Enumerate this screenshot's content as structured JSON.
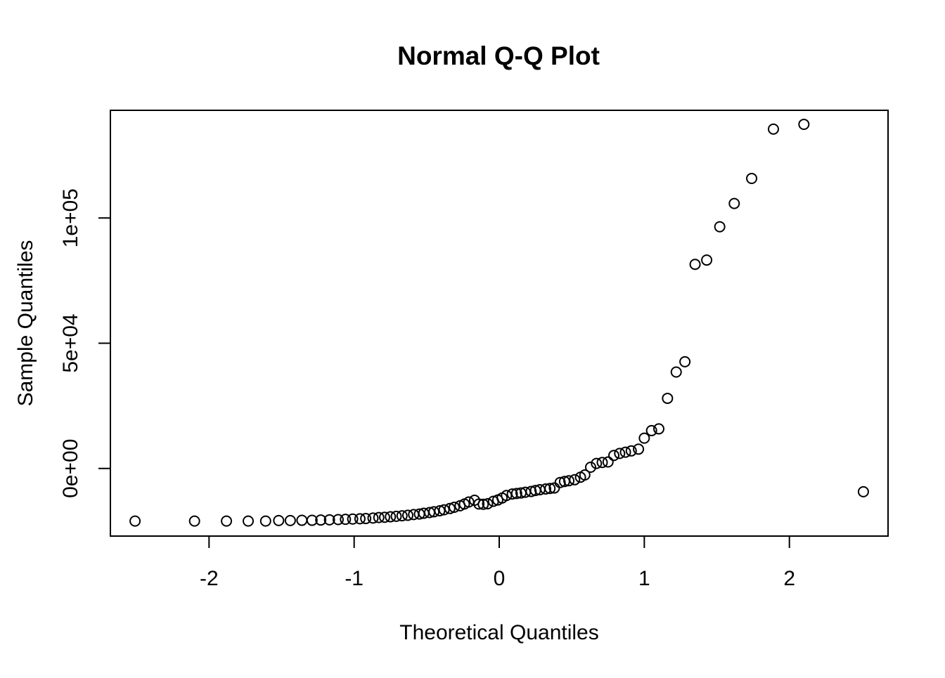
{
  "chart_data": {
    "type": "scatter",
    "title": "Normal Q-Q Plot",
    "xlabel": "Theoretical Quantiles",
    "ylabel": "Sample Quantiles",
    "xlim": [
      -2.68,
      2.68
    ],
    "ylim": [
      -27000,
      143000
    ],
    "xticks": [
      {
        "value": -2,
        "label": "-2"
      },
      {
        "value": -1,
        "label": "-1"
      },
      {
        "value": 0,
        "label": "0"
      },
      {
        "value": 1,
        "label": "1"
      },
      {
        "value": 2,
        "label": "2"
      }
    ],
    "yticks": [
      {
        "value": 0,
        "label": "0e+00"
      },
      {
        "value": 50000,
        "label": "5e+04"
      },
      {
        "value": 100000,
        "label": "1e+05"
      }
    ],
    "grid": false,
    "marker": "open-circle",
    "x": [
      -2.51,
      -2.1,
      -1.88,
      -1.73,
      -1.61,
      -1.52,
      -1.44,
      -1.36,
      -1.29,
      -1.23,
      -1.17,
      -1.11,
      -1.06,
      -1.01,
      -0.96,
      -0.92,
      -0.87,
      -0.83,
      -0.79,
      -0.75,
      -0.71,
      -0.67,
      -0.63,
      -0.59,
      -0.55,
      -0.52,
      -0.48,
      -0.45,
      -0.41,
      -0.38,
      -0.34,
      -0.31,
      -0.27,
      -0.24,
      -0.21,
      -0.17,
      -0.14,
      -0.11,
      -0.08,
      -0.04,
      -0.01,
      0.02,
      0.05,
      0.09,
      0.12,
      0.15,
      0.18,
      0.22,
      0.25,
      0.28,
      0.32,
      0.35,
      0.38,
      0.42,
      0.45,
      0.48,
      0.52,
      0.56,
      0.59,
      0.63,
      0.67,
      0.71,
      0.75,
      0.79,
      0.83,
      0.87,
      0.91,
      0.96,
      1.0,
      1.05,
      1.1,
      1.16,
      1.22,
      1.28,
      1.35,
      1.43,
      1.52,
      1.62,
      1.74,
      1.89,
      2.1,
      2.51
    ],
    "y": [
      -21000,
      -21000,
      -21000,
      -21000,
      -21000,
      -20800,
      -20800,
      -20700,
      -20700,
      -20600,
      -20500,
      -20400,
      -20300,
      -20200,
      -20100,
      -20000,
      -19800,
      -19600,
      -19500,
      -19300,
      -19100,
      -18900,
      -18700,
      -18400,
      -18200,
      -17900,
      -17600,
      -17300,
      -16900,
      -16500,
      -16000,
      -15500,
      -14900,
      -14200,
      -13400,
      -12700,
      -14200,
      -14300,
      -14100,
      -13100,
      -12600,
      -11800,
      -10800,
      -10200,
      -10000,
      -9800,
      -9500,
      -9200,
      -8800,
      -8500,
      -8200,
      -8000,
      -7800,
      -5600,
      -5200,
      -4900,
      -4500,
      -3500,
      -2600,
      500,
      2000,
      2400,
      2600,
      5200,
      6000,
      6500,
      7000,
      7700,
      12100,
      15100,
      15800,
      28000,
      38500,
      42600,
      81500,
      83200,
      96500,
      105800,
      115800,
      135500,
      137400,
      -9300
    ]
  }
}
